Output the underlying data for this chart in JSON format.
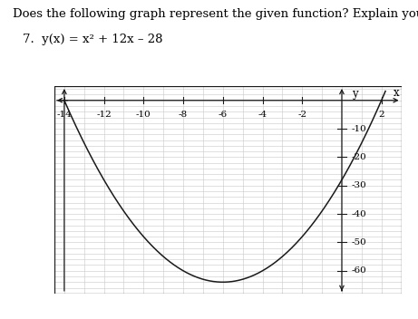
{
  "question_text": "Does the following graph represent the given function? Explain your reasoning.",
  "problem_number": "7.",
  "function_label": "y(x) = x² + 12x – 28",
  "x_min": -14.5,
  "x_max": 3.0,
  "y_min": -68,
  "y_max": 5,
  "x_ticks": [
    -14,
    -12,
    -10,
    -8,
    -6,
    -4,
    -2,
    2
  ],
  "y_ticks": [
    -10,
    -20,
    -30,
    -40,
    -50,
    -60
  ],
  "background_color": "#ffffff",
  "grid_color": "#c8c8c8",
  "curve_color": "#1a1a1a",
  "axis_color": "#1a1a1a",
  "text_color": "#000000",
  "font_size_question": 9.5,
  "font_size_label": 9.5,
  "font_size_tick": 7.5
}
